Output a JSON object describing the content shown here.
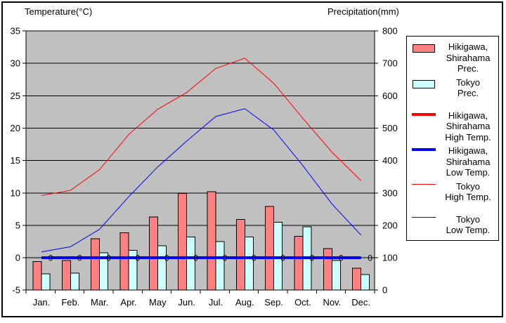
{
  "chart_data": {
    "type": "combo-bar-line",
    "categories": [
      "Jan.",
      "Feb.",
      "Mar.",
      "Apr.",
      "May",
      "Jun.",
      "Jul.",
      "Aug.",
      "Sep.",
      "Oct.",
      "Nov.",
      "Dec."
    ],
    "temp_axis": {
      "label": "Temperature(°C)",
      "min": -5,
      "max": 35,
      "step": 5,
      "ticks": [
        "35",
        "30",
        "25",
        "20",
        "15",
        "10",
        "5",
        "0",
        "-5"
      ]
    },
    "prec_axis": {
      "label": "Precipitation(mm)",
      "min": 0,
      "max": 800,
      "step": 100,
      "ticks": [
        "800",
        "700",
        "600",
        "500",
        "400",
        "300",
        "200",
        "100",
        "0"
      ]
    },
    "grid": true,
    "plot_bg_color": "#C0C0C0",
    "gridline_color": "#000000",
    "series": [
      {
        "name": "Hikigawa, Shirahama Prec.",
        "type": "bar",
        "axis": "prec",
        "color": "#FF8080",
        "values": [
          88,
          91,
          159,
          177,
          226,
          298,
          304,
          218,
          258,
          166,
          128,
          68
        ]
      },
      {
        "name": "Tokyo Prec.",
        "type": "bar",
        "axis": "prec",
        "color": "#CCFFFF",
        "values": [
          50,
          52,
          115,
          123,
          137,
          164,
          150,
          164,
          209,
          195,
          91,
          48
        ]
      },
      {
        "name": "Hikigawa, Shirahama High Temp.",
        "type": "line",
        "axis": "temp",
        "color": "#FF0000",
        "width": 4,
        "values": [
          0,
          0,
          0,
          0,
          0,
          0,
          0,
          0,
          0,
          0,
          0,
          0
        ]
      },
      {
        "name": "Hikigawa, Shirahama Low Temp.",
        "type": "line",
        "axis": "temp",
        "color": "#0000FF",
        "width": 4,
        "values": [
          0,
          0,
          0,
          0,
          0,
          0,
          0,
          0,
          0,
          0,
          0,
          0
        ],
        "point_labels": [
          "0",
          "0",
          "0",
          "0",
          "0",
          "0",
          "0",
          "0",
          "0",
          "0",
          "0",
          "0"
        ]
      },
      {
        "name": "Tokyo High Temp.",
        "type": "line",
        "axis": "temp",
        "color": "#FF0000",
        "width": 1,
        "values": [
          9.6,
          10.4,
          13.6,
          19.0,
          22.9,
          25.5,
          29.2,
          30.8,
          26.9,
          21.5,
          16.3,
          11.9
        ]
      },
      {
        "name": "Tokyo Low Temp.",
        "type": "line",
        "axis": "temp",
        "color": "#0000FF",
        "width": 1,
        "values": [
          0.9,
          1.7,
          4.4,
          9.4,
          14.0,
          18.0,
          21.8,
          23.0,
          19.7,
          14.2,
          8.3,
          3.5
        ]
      }
    ]
  },
  "legend": {
    "items": [
      {
        "marker": "box",
        "color": "#FF8080",
        "lines": [
          "Hikigawa,",
          "Shirahama",
          "Prec."
        ]
      },
      {
        "marker": "box",
        "color": "#CCFFFF",
        "lines": [
          "Tokyo",
          "Prec."
        ]
      },
      {
        "marker": "thick-line",
        "color": "#FF0000",
        "lines": [
          "Hikigawa,",
          "Shirahama",
          "High Temp."
        ]
      },
      {
        "marker": "thick-line",
        "color": "#0000FF",
        "lines": [
          "Hikigawa,",
          "Shirahama",
          "Low Temp."
        ]
      },
      {
        "marker": "thin-line",
        "color": "#FF0000",
        "lines": [
          "Tokyo",
          "High Temp."
        ]
      },
      {
        "marker": "thin-line",
        "color": "#0000FF",
        "lines": [
          "Tokyo",
          "Low Temp."
        ]
      }
    ]
  }
}
